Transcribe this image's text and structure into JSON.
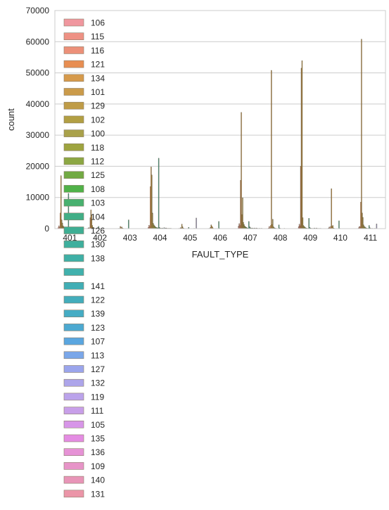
{
  "chart_data": {
    "type": "bar",
    "xlabel": "FAULT_TYPE",
    "ylabel": "count",
    "ylim": [
      0,
      70000
    ],
    "yticks": [
      0,
      10000,
      20000,
      30000,
      40000,
      50000,
      60000,
      70000
    ],
    "categories": [
      "401",
      "402",
      "403",
      "404",
      "405",
      "406",
      "407",
      "408",
      "409",
      "410",
      "411"
    ],
    "grid": true,
    "legend_placement": "upper-left, extending below the plot",
    "series": [
      {
        "name": "106",
        "color": "#f0979f",
        "values": [
          300,
          200,
          0,
          400,
          0,
          0,
          800,
          200,
          600,
          200,
          300
        ]
      },
      {
        "name": "115",
        "color": "#ee9184",
        "values": [
          900,
          300,
          100,
          1100,
          100,
          100,
          1600,
          700,
          1400,
          500,
          700
        ]
      },
      {
        "name": "116",
        "color": "#ec9079",
        "values": [
          400,
          100,
          0,
          600,
          0,
          0,
          1000,
          200,
          900,
          200,
          500
        ]
      },
      {
        "name": "121",
        "color": "#e88e52",
        "values": [
          5000,
          3500,
          700,
          13500,
          300,
          400,
          15500,
          1000,
          20000,
          700,
          8500
        ]
      },
      {
        "name": "134",
        "color": "#d69a4b",
        "values": [
          17000,
          6000,
          300,
          19800,
          200,
          1200,
          37300,
          50800,
          51500,
          12800,
          60800
        ]
      },
      {
        "name": "101",
        "color": "#cb9b4a",
        "values": [
          2800,
          4500,
          500,
          17200,
          1400,
          800,
          4500,
          1300,
          53900,
          700,
          5000
        ]
      },
      {
        "name": "129",
        "color": "#bf9c47",
        "values": [
          1800,
          1000,
          200,
          5000,
          600,
          400,
          9900,
          3000,
          3500,
          1000,
          3600
        ]
      },
      {
        "name": "102",
        "color": "#b29f43",
        "values": [
          900,
          400,
          100,
          1700,
          200,
          100,
          2000,
          600,
          1000,
          200,
          1200
        ]
      },
      {
        "name": "100",
        "color": "#a9a14a",
        "values": [
          600,
          300,
          0,
          1200,
          100,
          0,
          1300,
          300,
          700,
          100,
          700
        ]
      },
      {
        "name": "118",
        "color": "#9ea43f",
        "values": [
          400,
          200,
          0,
          900,
          0,
          0,
          800,
          200,
          500,
          0,
          500
        ]
      },
      {
        "name": "112",
        "color": "#8ca743",
        "values": [
          300,
          100,
          0,
          600,
          0,
          0,
          600,
          100,
          300,
          0,
          300
        ]
      },
      {
        "name": "125",
        "color": "#72aa43",
        "values": [
          200,
          100,
          0,
          400,
          0,
          0,
          400,
          100,
          200,
          0,
          200
        ]
      },
      {
        "name": "108",
        "color": "#50b249",
        "values": [
          100,
          0,
          0,
          300,
          0,
          0,
          300,
          0,
          100,
          0,
          100
        ]
      },
      {
        "name": "103",
        "color": "#48b16f",
        "values": [
          200,
          0,
          0,
          300,
          0,
          0,
          200,
          0,
          100,
          0,
          100
        ]
      },
      {
        "name": "104",
        "color": "#41ae86",
        "values": [
          100,
          0,
          0,
          200,
          0,
          0,
          100,
          0,
          100,
          0,
          100
        ]
      },
      {
        "name": "126",
        "color": "#3fae94",
        "values": [
          11300,
          700,
          2800,
          22600,
          400,
          2300,
          2300,
          1200,
          3300,
          2500,
          1000
        ]
      },
      {
        "name": "130",
        "color": "#3eaf9d",
        "values": [
          200,
          100,
          0,
          400,
          0,
          100,
          600,
          200,
          400,
          100,
          300
        ]
      },
      {
        "name": "138",
        "color": "#3fb0a6",
        "values": [
          100,
          0,
          0,
          200,
          0,
          0,
          300,
          100,
          200,
          0,
          100
        ]
      },
      {
        "name": "",
        "color": "#40b1ad",
        "values": [
          100,
          0,
          0,
          100,
          0,
          0,
          200,
          0,
          100,
          0,
          100
        ]
      },
      {
        "name": "141",
        "color": "#41aeb5",
        "values": [
          0,
          0,
          0,
          100,
          0,
          0,
          100,
          0,
          100,
          0,
          0
        ]
      },
      {
        "name": "122",
        "color": "#43adbc",
        "values": [
          100,
          0,
          0,
          200,
          0,
          0,
          200,
          0,
          100,
          0,
          100
        ]
      },
      {
        "name": "139",
        "color": "#45acc4",
        "values": [
          0,
          0,
          0,
          100,
          0,
          0,
          100,
          0,
          0,
          0,
          0
        ]
      },
      {
        "name": "123",
        "color": "#4ca9d1",
        "values": [
          100,
          0,
          0,
          100,
          0,
          0,
          100,
          0,
          100,
          0,
          0
        ]
      },
      {
        "name": "107",
        "color": "#5aa6e0",
        "values": [
          200,
          100,
          0,
          300,
          100,
          0,
          200,
          100,
          200,
          0,
          100
        ]
      },
      {
        "name": "113",
        "color": "#7aa7e9",
        "values": [
          100,
          0,
          0,
          100,
          0,
          0,
          100,
          0,
          0,
          0,
          0
        ]
      },
      {
        "name": "127",
        "color": "#9ba5ec",
        "values": [
          100,
          0,
          0,
          200,
          0,
          0,
          100,
          0,
          100,
          0,
          100
        ]
      },
      {
        "name": "132",
        "color": "#ada5ea",
        "values": [
          100,
          0,
          0,
          200,
          3400,
          0,
          200,
          0,
          200,
          0,
          1500
        ]
      },
      {
        "name": "119",
        "color": "#bba3eb",
        "values": [
          0,
          0,
          0,
          100,
          0,
          0,
          100,
          0,
          0,
          0,
          0
        ]
      },
      {
        "name": "111",
        "color": "#c89fe9",
        "values": [
          100,
          0,
          0,
          100,
          0,
          0,
          100,
          0,
          100,
          0,
          0
        ]
      },
      {
        "name": "105",
        "color": "#d795e8",
        "values": [
          0,
          0,
          0,
          100,
          0,
          0,
          0,
          0,
          0,
          0,
          0
        ]
      },
      {
        "name": "135",
        "color": "#e48ce3",
        "values": [
          100,
          0,
          0,
          100,
          0,
          0,
          100,
          0,
          100,
          0,
          0
        ]
      },
      {
        "name": "136",
        "color": "#e692d6",
        "values": [
          0,
          0,
          0,
          100,
          0,
          0,
          100,
          0,
          0,
          0,
          0
        ]
      },
      {
        "name": "109",
        "color": "#e794c8",
        "values": [
          100,
          0,
          0,
          100,
          0,
          0,
          0,
          0,
          100,
          0,
          0
        ]
      },
      {
        "name": "140",
        "color": "#e895b8",
        "values": [
          0,
          0,
          0,
          100,
          0,
          0,
          100,
          0,
          0,
          0,
          0
        ]
      },
      {
        "name": "131",
        "color": "#eb95a8",
        "values": [
          0,
          0,
          0,
          0,
          0,
          0,
          100,
          0,
          0,
          0,
          0
        ]
      }
    ]
  }
}
